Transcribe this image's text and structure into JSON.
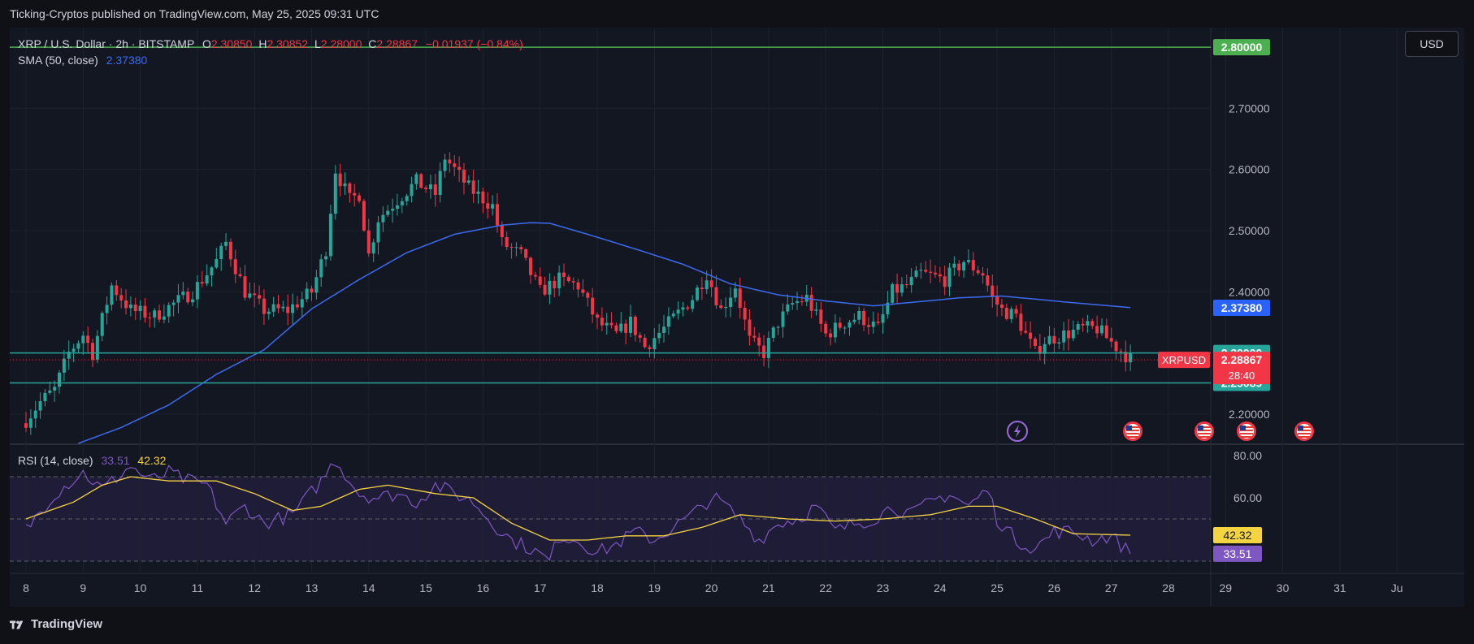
{
  "header": {
    "published": "Ticking-Cryptos published on TradingView.com, May 25, 2025 09:31 UTC"
  },
  "legend": {
    "symbol": "XRP / U.S. Dollar · 2h · BITSTAMP",
    "open_label": "O",
    "open": "2.30850",
    "high_label": "H",
    "high": "2.30852",
    "low_label": "L",
    "low": "2.28000",
    "close_label": "C",
    "close": "2.28867",
    "change": "−0.01937 (−0.84%)",
    "sma_label": "SMA (50, close)",
    "sma_value": "2.37380",
    "rsi_label": "RSI (14, close)",
    "rsi_value": "33.51",
    "rsi_ma_value": "42.32"
  },
  "currency_button": "USD",
  "footer": {
    "brand": "TradingView"
  },
  "colors": {
    "up": "#26a69a",
    "down": "#f23645",
    "sma": "#3d6bf0",
    "rsi": "#7e57c2",
    "rsi_ma": "#f5d442",
    "resistance": "#4caf50",
    "support": "#26a69a",
    "price_tag": "#f23645",
    "sma_tag": "#2962ff"
  },
  "chart_data": {
    "type": "candlestick",
    "interval": "2h",
    "x_ticks": [
      "8",
      "9",
      "10",
      "11",
      "12",
      "13",
      "14",
      "15",
      "16",
      "17",
      "18",
      "19",
      "20",
      "21",
      "22",
      "23",
      "24",
      "25",
      "26",
      "27",
      "28",
      "29",
      "30",
      "31",
      "Ju"
    ],
    "y_ticks": [
      "2.20000",
      "2.30000",
      "2.40000",
      "2.50000",
      "2.60000",
      "2.70000"
    ],
    "ylim": [
      2.152,
      2.832
    ],
    "horizontal_lines": [
      {
        "value": 2.8,
        "label": "2.80000",
        "color": "#4caf50"
      },
      {
        "value": 2.3,
        "label": "2.30000",
        "color": "#26a69a"
      },
      {
        "value": 2.25089,
        "label": "2.25089",
        "color": "#26a69a"
      }
    ],
    "price_tag": {
      "symbol": "XRPUSD",
      "value": "2.28867",
      "countdown": "28:40"
    },
    "sma_tag": "2.37380",
    "price_keypoints": [
      [
        0,
        2.19
      ],
      [
        3,
        2.22
      ],
      [
        6,
        2.24
      ],
      [
        9,
        2.3
      ],
      [
        12,
        2.33
      ],
      [
        14,
        2.3
      ],
      [
        18,
        2.41
      ],
      [
        22,
        2.37
      ],
      [
        27,
        2.36
      ],
      [
        31,
        2.38
      ],
      [
        35,
        2.4
      ],
      [
        40,
        2.45
      ],
      [
        42,
        2.48
      ],
      [
        46,
        2.4
      ],
      [
        50,
        2.37
      ],
      [
        55,
        2.37
      ],
      [
        60,
        2.4
      ],
      [
        63,
        2.47
      ],
      [
        65,
        2.6
      ],
      [
        68,
        2.55
      ],
      [
        70,
        2.56
      ],
      [
        72,
        2.46
      ],
      [
        74,
        2.52
      ],
      [
        78,
        2.55
      ],
      [
        82,
        2.58
      ],
      [
        86,
        2.56
      ],
      [
        88,
        2.62
      ],
      [
        90,
        2.6
      ],
      [
        93,
        2.57
      ],
      [
        98,
        2.54
      ],
      [
        100,
        2.48
      ],
      [
        104,
        2.46
      ],
      [
        108,
        2.4
      ],
      [
        112,
        2.42
      ],
      [
        116,
        2.41
      ],
      [
        120,
        2.35
      ],
      [
        124,
        2.33
      ],
      [
        127,
        2.35
      ],
      [
        130,
        2.31
      ],
      [
        134,
        2.34
      ],
      [
        140,
        2.39
      ],
      [
        143,
        2.43
      ],
      [
        146,
        2.37
      ],
      [
        149,
        2.41
      ],
      [
        152,
        2.32
      ],
      [
        155,
        2.3
      ],
      [
        158,
        2.35
      ],
      [
        161,
        2.38
      ],
      [
        164,
        2.39
      ],
      [
        168,
        2.33
      ],
      [
        172,
        2.35
      ],
      [
        175,
        2.36
      ],
      [
        179,
        2.34
      ],
      [
        182,
        2.4
      ],
      [
        185,
        2.41
      ],
      [
        188,
        2.43
      ],
      [
        193,
        2.42
      ],
      [
        197,
        2.45
      ],
      [
        201,
        2.43
      ],
      [
        203,
        2.39
      ],
      [
        205,
        2.37
      ],
      [
        208,
        2.36
      ],
      [
        212,
        2.3
      ],
      [
        214,
        2.32
      ],
      [
        218,
        2.33
      ],
      [
        222,
        2.34
      ],
      [
        225,
        2.34
      ],
      [
        229,
        2.31
      ],
      [
        232,
        2.29
      ]
    ],
    "sma_keypoints": [
      [
        11,
        2.152
      ],
      [
        20,
        2.178
      ],
      [
        30,
        2.215
      ],
      [
        40,
        2.265
      ],
      [
        50,
        2.305
      ],
      [
        60,
        2.372
      ],
      [
        70,
        2.42
      ],
      [
        80,
        2.464
      ],
      [
        90,
        2.494
      ],
      [
        100,
        2.509
      ],
      [
        106,
        2.513
      ],
      [
        110,
        2.512
      ],
      [
        118,
        2.494
      ],
      [
        128,
        2.47
      ],
      [
        138,
        2.445
      ],
      [
        148,
        2.413
      ],
      [
        158,
        2.395
      ],
      [
        168,
        2.385
      ],
      [
        178,
        2.377
      ],
      [
        188,
        2.384
      ],
      [
        196,
        2.39
      ],
      [
        205,
        2.393
      ],
      [
        212,
        2.388
      ],
      [
        220,
        2.382
      ],
      [
        232,
        2.374
      ]
    ],
    "rsi": {
      "ylim": [
        25,
        85
      ],
      "levels": [
        70,
        50,
        30
      ],
      "ticks": [
        "80.00",
        "60.00"
      ],
      "last": 33.51,
      "ma_last": 42.32
    },
    "rsi_keypoints": [
      [
        0,
        45
      ],
      [
        6,
        62
      ],
      [
        12,
        72
      ],
      [
        16,
        64
      ],
      [
        22,
        75
      ],
      [
        26,
        68
      ],
      [
        30,
        72
      ],
      [
        34,
        68
      ],
      [
        38,
        66
      ],
      [
        42,
        48
      ],
      [
        46,
        56
      ],
      [
        50,
        48
      ],
      [
        56,
        52
      ],
      [
        62,
        68
      ],
      [
        65,
        78
      ],
      [
        70,
        62
      ],
      [
        74,
        60
      ],
      [
        78,
        62
      ],
      [
        82,
        58
      ],
      [
        86,
        66
      ],
      [
        90,
        62
      ],
      [
        94,
        58
      ],
      [
        98,
        48
      ],
      [
        102,
        40
      ],
      [
        106,
        36
      ],
      [
        110,
        30
      ],
      [
        112,
        42
      ],
      [
        116,
        40
      ],
      [
        120,
        34
      ],
      [
        124,
        38
      ],
      [
        128,
        44
      ],
      [
        132,
        40
      ],
      [
        136,
        46
      ],
      [
        140,
        52
      ],
      [
        144,
        60
      ],
      [
        146,
        58
      ],
      [
        150,
        50
      ],
      [
        154,
        40
      ],
      [
        158,
        48
      ],
      [
        162,
        50
      ],
      [
        166,
        56
      ],
      [
        170,
        44
      ],
      [
        174,
        48
      ],
      [
        178,
        50
      ],
      [
        182,
        56
      ],
      [
        186,
        52
      ],
      [
        190,
        58
      ],
      [
        194,
        62
      ],
      [
        198,
        56
      ],
      [
        202,
        64
      ],
      [
        204,
        50
      ],
      [
        208,
        40
      ],
      [
        212,
        36
      ],
      [
        216,
        44
      ],
      [
        220,
        44
      ],
      [
        224,
        40
      ],
      [
        228,
        42
      ],
      [
        232,
        33.51
      ]
    ],
    "rsi_ma_keypoints": [
      [
        0,
        50
      ],
      [
        10,
        58
      ],
      [
        16,
        66
      ],
      [
        22,
        70
      ],
      [
        30,
        68
      ],
      [
        40,
        68
      ],
      [
        48,
        62
      ],
      [
        56,
        54
      ],
      [
        62,
        56
      ],
      [
        70,
        64
      ],
      [
        76,
        66
      ],
      [
        86,
        62
      ],
      [
        94,
        60
      ],
      [
        102,
        48
      ],
      [
        110,
        40
      ],
      [
        118,
        40
      ],
      [
        126,
        42
      ],
      [
        134,
        42
      ],
      [
        142,
        46
      ],
      [
        150,
        52
      ],
      [
        160,
        50
      ],
      [
        170,
        49
      ],
      [
        180,
        50
      ],
      [
        190,
        52
      ],
      [
        198,
        56
      ],
      [
        204,
        56
      ],
      [
        212,
        50
      ],
      [
        220,
        43
      ],
      [
        232,
        42.32
      ]
    ],
    "events": [
      "lightning-icon",
      "us-flag-icon",
      "us-flag-icon",
      "us-flag-icon",
      "us-flag-icon"
    ]
  }
}
